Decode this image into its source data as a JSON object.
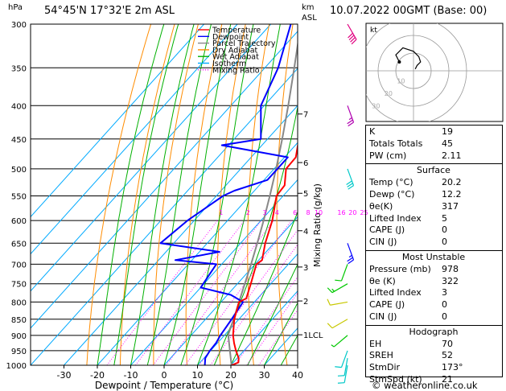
{
  "header": {
    "hpa": "hPa",
    "location": "54°45'N  17°32'E  2m  ASL",
    "km_label": "km",
    "asl_label": "ASL",
    "datetime": "10.07.2022  00GMT  (Base: 00)"
  },
  "legend": [
    {
      "label": "Temperature",
      "color": "#ff0000",
      "dash": "none"
    },
    {
      "label": "Dewpoint",
      "color": "#0000ff",
      "dash": "none"
    },
    {
      "label": "Parcel Trajectory",
      "color": "#888888",
      "dash": "none"
    },
    {
      "label": "Dry Adiabat",
      "color": "#ff8c00",
      "dash": "none"
    },
    {
      "label": "Wet Adiabat",
      "color": "#00b000",
      "dash": "none"
    },
    {
      "label": "Isotherm",
      "color": "#00aaff",
      "dash": "none"
    },
    {
      "label": "Mixing Ratio",
      "color": "#ff00ff",
      "dash": "dotted"
    }
  ],
  "colors": {
    "temperature": "#ff0000",
    "dewpoint": "#0000ff",
    "parcel": "#888888",
    "dry_adiabat": "#ff8c00",
    "wet_adiabat": "#00b000",
    "isotherm": "#00aaff",
    "mixing_ratio": "#ff00ff"
  },
  "chart_data": {
    "type": "skew-t log-p",
    "title": "54°45'N  17°32'E  2m  ASL",
    "xlabel": "Dewpoint / Temperature (°C)",
    "ylabel": "hPa",
    "right_axis_label": "Mixing Ratio (g/kg)",
    "pressure_levels": [
      300,
      350,
      400,
      450,
      500,
      550,
      600,
      650,
      700,
      750,
      800,
      850,
      900,
      950,
      1000
    ],
    "x_ticks": [
      -30,
      -20,
      -10,
      0,
      10,
      20,
      30,
      40
    ],
    "xlim": [
      -40,
      40
    ],
    "ylim": [
      1000,
      300
    ],
    "km_ticks": [
      {
        "label": "7",
        "p": 412
      },
      {
        "label": "6",
        "p": 489
      },
      {
        "label": "5",
        "p": 545
      },
      {
        "label": "4",
        "p": 622
      },
      {
        "label": "3",
        "p": 707
      },
      {
        "label": "2",
        "p": 797
      },
      {
        "label": "1LCL",
        "p": 898
      }
    ],
    "mixing_ratio_labels": [
      "1",
      "2",
      "3",
      "4",
      "6",
      "8",
      "10",
      "16",
      "20",
      "25"
    ],
    "mixing_ratio_values": [
      1,
      2,
      3,
      4,
      6,
      8,
      10,
      16,
      20,
      25
    ],
    "mixing_ratio_label_p": 590,
    "isotherms": [
      -80,
      -70,
      -60,
      -50,
      -40,
      -30,
      -20,
      -10,
      0,
      10,
      20,
      30,
      40
    ],
    "dry_adiabats_theta": [
      250,
      260,
      270,
      280,
      290,
      300,
      310,
      320,
      330,
      340,
      350,
      360,
      370,
      380,
      390,
      400,
      410,
      420,
      430,
      440,
      450,
      460
    ],
    "wet_adiabats_start": [
      -20,
      -15,
      -10,
      -5,
      0,
      5,
      10,
      15,
      20,
      25,
      30,
      35
    ],
    "temperature": [
      [
        1000,
        20.2
      ],
      [
        990,
        21.5
      ],
      [
        975,
        20.4
      ],
      [
        950,
        17.6
      ],
      [
        925,
        15.0
      ],
      [
        900,
        12.6
      ],
      [
        850,
        8.6
      ],
      [
        800,
        5.4
      ],
      [
        790,
        6.6
      ],
      [
        750,
        4.0
      ],
      [
        700,
        0.4
      ],
      [
        690,
        1.0
      ],
      [
        650,
        -2.6
      ],
      [
        600,
        -6.6
      ],
      [
        550,
        -12.0
      ],
      [
        530,
        -12.4
      ],
      [
        500,
        -16.4
      ],
      [
        480,
        -16.6
      ],
      [
        450,
        -20.6
      ],
      [
        400,
        -26.6
      ],
      [
        350,
        -34.6
      ],
      [
        300,
        -44.0
      ]
    ],
    "dewpoint": [
      [
        1000,
        12.2
      ],
      [
        975,
        10.4
      ],
      [
        950,
        9.8
      ],
      [
        925,
        9.6
      ],
      [
        900,
        8.8
      ],
      [
        850,
        7.8
      ],
      [
        800,
        6.6
      ],
      [
        780,
        1.0
      ],
      [
        760,
        -10.0
      ],
      [
        700,
        -11.6
      ],
      [
        690,
        -25.0
      ],
      [
        670,
        -14.0
      ],
      [
        650,
        -34.0
      ],
      [
        600,
        -32.0
      ],
      [
        550,
        -28.0
      ],
      [
        540,
        -26.0
      ],
      [
        520,
        -19.0
      ],
      [
        500,
        -19.0
      ],
      [
        480,
        -19.0
      ],
      [
        460,
        -42.0
      ],
      [
        450,
        -32.0
      ],
      [
        400,
        -41.0
      ],
      [
        350,
        -46.0
      ],
      [
        300,
        -54.0
      ]
    ],
    "parcel": [
      [
        1000,
        20.2
      ],
      [
        950,
        15.8
      ],
      [
        898,
        11.0
      ],
      [
        850,
        8.4
      ],
      [
        800,
        5.4
      ],
      [
        750,
        2.2
      ],
      [
        700,
        -1.2
      ],
      [
        650,
        -5.0
      ],
      [
        600,
        -9.2
      ],
      [
        550,
        -14.0
      ],
      [
        500,
        -19.4
      ],
      [
        450,
        -25.6
      ],
      [
        400,
        -32.8
      ],
      [
        350,
        -41.2
      ],
      [
        300,
        -51.0
      ]
    ],
    "wind_barbs": [
      {
        "p": 1000,
        "dir": 190,
        "spd": 10
      },
      {
        "p": 975,
        "dir": 190,
        "spd": 10
      },
      {
        "p": 950,
        "dir": 200,
        "spd": 10
      },
      {
        "p": 900,
        "dir": 230,
        "spd": 5
      },
      {
        "p": 850,
        "dir": 240,
        "spd": 10
      },
      {
        "p": 800,
        "dir": 260,
        "spd": 10
      },
      {
        "p": 750,
        "dir": 240,
        "spd": 15
      },
      {
        "p": 700,
        "dir": 200,
        "spd": 10
      },
      {
        "p": 650,
        "dir": 160,
        "spd": 25
      },
      {
        "p": 500,
        "dir": 160,
        "spd": 30
      },
      {
        "p": 400,
        "dir": 160,
        "spd": 25
      },
      {
        "p": 300,
        "dir": 150,
        "spd": 40
      }
    ],
    "hodograph": {
      "label": "kt",
      "ring_labels": [
        "10",
        "20",
        "30"
      ],
      "points": [
        [
          1,
          -1
        ],
        [
          2,
          -3
        ],
        [
          4,
          -5
        ],
        [
          3,
          -8
        ],
        [
          0,
          -11
        ],
        [
          -6,
          -13
        ],
        [
          -10,
          -9
        ],
        [
          -8,
          -5
        ]
      ]
    }
  },
  "indices": {
    "top": [
      {
        "label": "K",
        "value": "19"
      },
      {
        "label": "Totals Totals",
        "value": "45"
      },
      {
        "label": "PW (cm)",
        "value": "2.11"
      }
    ],
    "surface_title": "Surface",
    "surface": [
      {
        "label": "Temp (°C)",
        "value": "20.2"
      },
      {
        "label": "Dewp (°C)",
        "value": "12.2"
      },
      {
        "label": "θe(K)",
        "value": "317"
      },
      {
        "label": "Lifted Index",
        "value": "5"
      },
      {
        "label": "CAPE (J)",
        "value": "0"
      },
      {
        "label": "CIN (J)",
        "value": "0"
      }
    ],
    "mu_title": "Most Unstable",
    "mu": [
      {
        "label": "Pressure (mb)",
        "value": "978"
      },
      {
        "label": "θe (K)",
        "value": "322"
      },
      {
        "label": "Lifted Index",
        "value": "3"
      },
      {
        "label": "CAPE (J)",
        "value": "0"
      },
      {
        "label": "CIN (J)",
        "value": "0"
      }
    ],
    "hodo_title": "Hodograph",
    "hodo": [
      {
        "label": "EH",
        "value": "70"
      },
      {
        "label": "SREH",
        "value": "52"
      },
      {
        "label": "StmDir",
        "value": "173°"
      },
      {
        "label": "StmSpd (kt)",
        "value": "21"
      }
    ]
  },
  "copyright": "© weatheronline.co.uk"
}
